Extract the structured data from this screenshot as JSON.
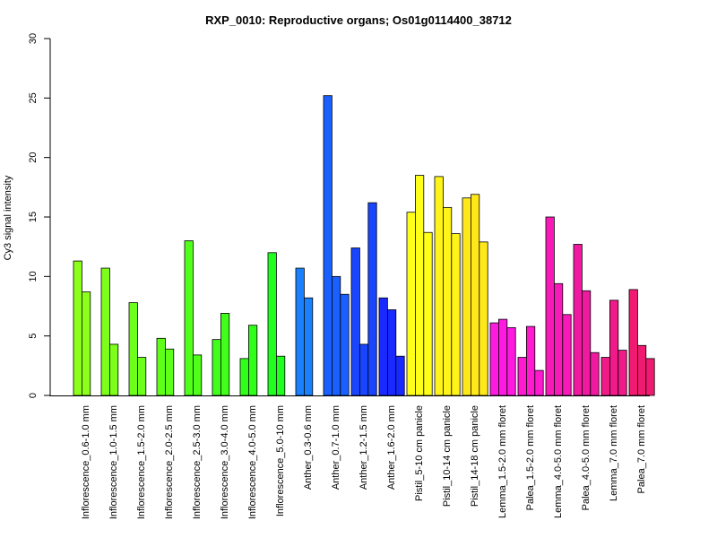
{
  "chart_data": {
    "type": "bar",
    "title": "RXP_0010: Reproductive organs; Os01g0114400_38712",
    "xlabel": "",
    "ylabel": "Cy3 signal intensity",
    "ylim": [
      0,
      30
    ],
    "yticks": [
      0,
      5,
      10,
      15,
      20,
      25,
      30
    ],
    "grid": false,
    "legend": "none",
    "groups": [
      {
        "label": "Inflorescence_0.6-1.0 mm",
        "color": "#8cff1a",
        "values": [
          11.3,
          8.7
        ]
      },
      {
        "label": "Inflorescence_1.0-1.5 mm",
        "color": "#7dff1a",
        "values": [
          10.7,
          4.3
        ]
      },
      {
        "label": "Inflorescence_1.5-2.0 mm",
        "color": "#6eff1a",
        "values": [
          7.8,
          3.2
        ]
      },
      {
        "label": "Inflorescence_2.0-2.5 mm",
        "color": "#5fff1a",
        "values": [
          4.8,
          3.9
        ]
      },
      {
        "label": "Inflorescence_2.5-3.0 mm",
        "color": "#50ff1a",
        "values": [
          13.0,
          3.4
        ]
      },
      {
        "label": "Inflorescence_3.0-4.0 mm",
        "color": "#40ff1a",
        "values": [
          4.7,
          6.9
        ]
      },
      {
        "label": "Inflorescence_4.0-5.0 mm",
        "color": "#30ff1a",
        "values": [
          3.1,
          5.9
        ]
      },
      {
        "label": "Inflorescence_5.0-10 mm",
        "color": "#20ff20",
        "values": [
          12.0,
          3.3
        ]
      },
      {
        "label": "Anther_0.3-0.6 mm",
        "color": "#1a80ff",
        "values": [
          10.7,
          8.2
        ]
      },
      {
        "label": "Anther_0.7-1.0 mm",
        "color": "#1a60ff",
        "values": [
          25.2,
          10.0,
          8.5
        ]
      },
      {
        "label": "Anther_1.2-1.5 mm",
        "color": "#1a45ff",
        "values": [
          12.4,
          4.3,
          16.2
        ]
      },
      {
        "label": "Anther_1.6-2.0 mm",
        "color": "#1a2aff",
        "values": [
          8.2,
          7.2,
          3.3
        ]
      },
      {
        "label": "Pistil_5-10 cm panicle",
        "color": "#ffff1a",
        "values": [
          15.4,
          18.5,
          13.7
        ]
      },
      {
        "label": "Pistil_10-14 cm panicle",
        "color": "#fff41a",
        "values": [
          18.4,
          15.8,
          13.6
        ]
      },
      {
        "label": "Pistil_14-18 cm panicle",
        "color": "#ffe81a",
        "values": [
          16.6,
          16.9,
          12.9
        ]
      },
      {
        "label": "Lemma_1.5-2.0 mm floret",
        "color": "#ff1ae0",
        "values": [
          6.1,
          6.4,
          5.7
        ]
      },
      {
        "label": "Palea_1.5-2.0 mm floret",
        "color": "#ff1ad0",
        "values": [
          3.2,
          5.8,
          2.1
        ]
      },
      {
        "label": "Lemma_4.0-5.0 mm floret",
        "color": "#f81ab8",
        "values": [
          15.0,
          9.4,
          6.8
        ]
      },
      {
        "label": "Palea_4.0-5.0 mm floret",
        "color": "#f01aa0",
        "values": [
          12.7,
          8.8,
          3.6
        ]
      },
      {
        "label": "Lemma_7.0 mm floret",
        "color": "#f01a88",
        "values": [
          3.2,
          8.0,
          3.8
        ]
      },
      {
        "label": "Palea_7.0 mm floret",
        "color": "#f01a70",
        "values": [
          8.9,
          4.2,
          3.1
        ]
      }
    ]
  }
}
